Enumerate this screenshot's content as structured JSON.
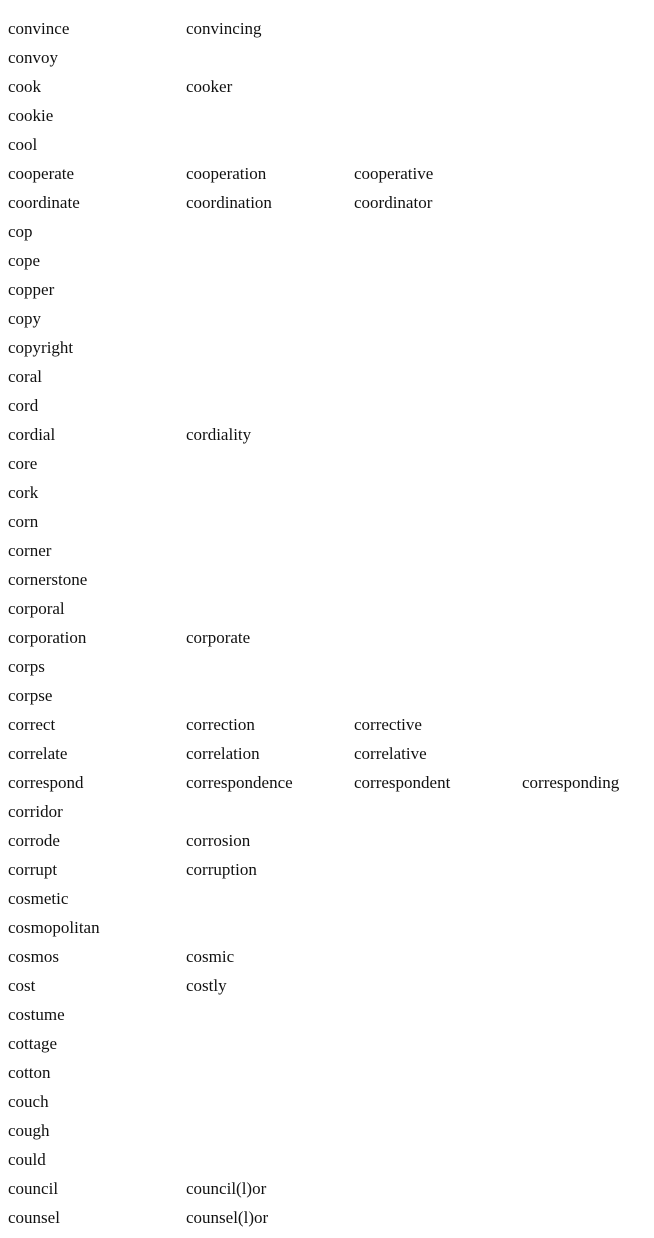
{
  "rows": [
    [
      "convince",
      "convincing"
    ],
    [
      "convoy"
    ],
    [
      "cook",
      "cooker"
    ],
    [
      "cookie"
    ],
    [
      "cool"
    ],
    [
      "cooperate",
      "cooperation",
      "cooperative"
    ],
    [
      "coordinate",
      "coordination",
      "coordinator"
    ],
    [
      "cop"
    ],
    [
      "cope"
    ],
    [
      "copper"
    ],
    [
      "copy"
    ],
    [
      "copyright"
    ],
    [
      "coral"
    ],
    [
      "cord"
    ],
    [
      "cordial",
      "cordiality"
    ],
    [
      "core"
    ],
    [
      "cork"
    ],
    [
      "corn"
    ],
    [
      "corner"
    ],
    [
      "cornerstone"
    ],
    [
      "corporal"
    ],
    [
      "corporation",
      "corporate"
    ],
    [
      "corps"
    ],
    [
      "corpse"
    ],
    [
      "correct",
      "correction",
      "corrective"
    ],
    [
      "correlate",
      "correlation",
      "correlative"
    ],
    [
      "correspond",
      "correspondence",
      "correspondent",
      "corresponding"
    ],
    [
      "corridor"
    ],
    [
      "corrode",
      "corrosion"
    ],
    [
      "corrupt",
      "corruption"
    ],
    [
      "cosmetic"
    ],
    [
      "cosmopolitan"
    ],
    [
      "cosmos",
      "cosmic"
    ],
    [
      "cost",
      "costly"
    ],
    [
      "costume"
    ],
    [
      "cottage"
    ],
    [
      "cotton"
    ],
    [
      "couch"
    ],
    [
      "cough"
    ],
    [
      "could"
    ],
    [
      "council",
      "council(l)or"
    ],
    [
      "counsel",
      "counsel(l)or"
    ]
  ]
}
